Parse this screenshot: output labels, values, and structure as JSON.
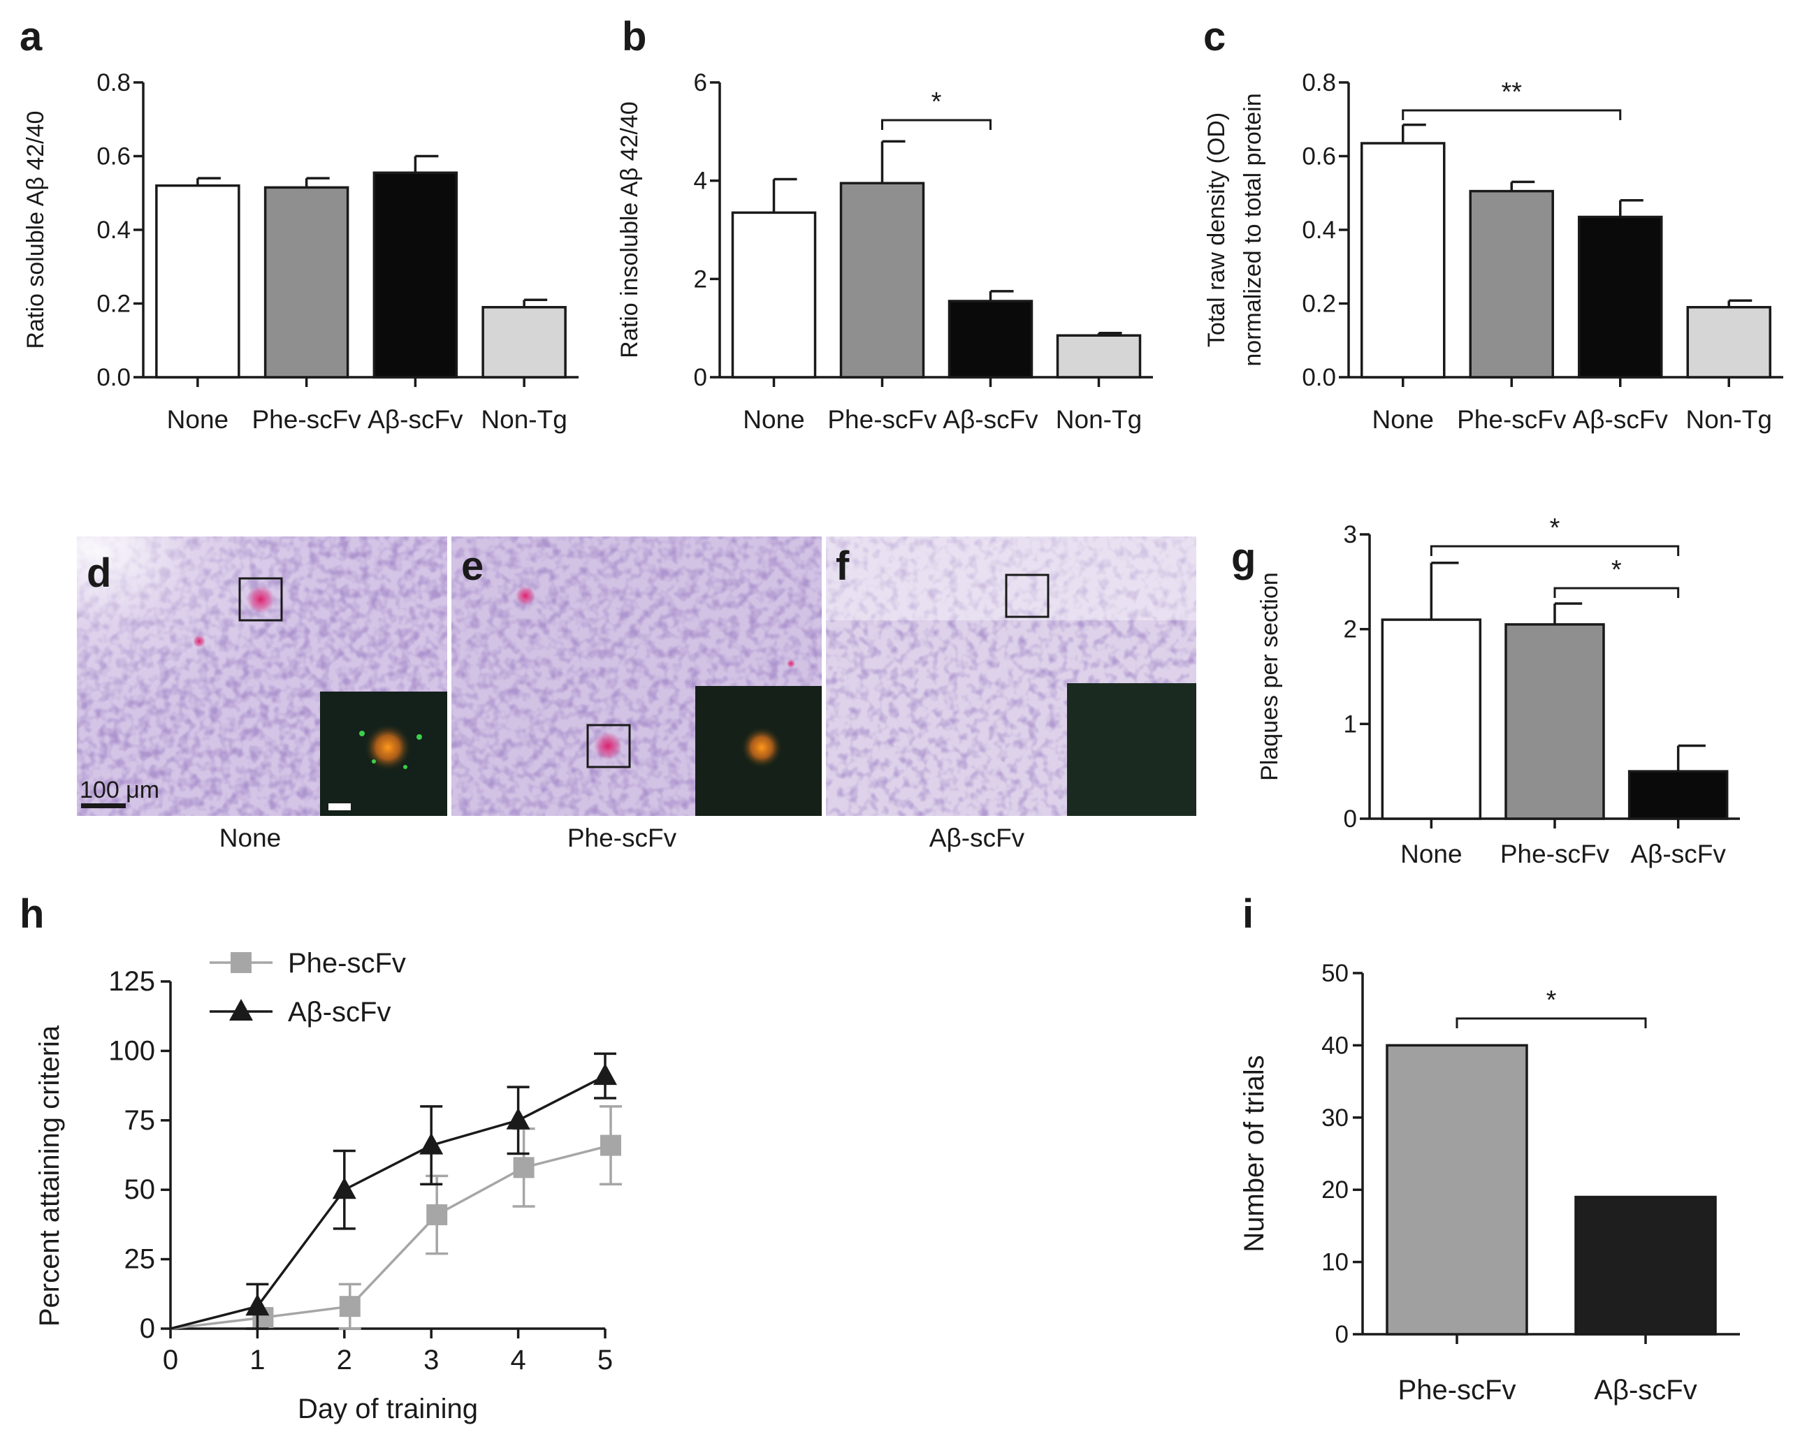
{
  "panel_labels": {
    "a": "a",
    "b": "b",
    "c": "c",
    "d": "d",
    "e": "e",
    "f": "f",
    "g": "g",
    "h": "h",
    "i": "i"
  },
  "colors": {
    "None": "#ffffff",
    "Phe-scFv": "#8f8f8f",
    "Aβ-scFv": "#0a0a0a",
    "Non-Tg": "#d6d6d6",
    "line_phe": "#a6a6a6",
    "line_ab": "#1a1a1a",
    "bar_i_phe": "#a0a0a0",
    "bar_i_ab": "#1e1e1e"
  },
  "chart_data": [
    {
      "id": "a",
      "type": "bar",
      "ylabel": "Ratio soluble Aβ 42/40",
      "categories": [
        "None",
        "Phe-scFv",
        "Aβ-scFv",
        "Non-Tg"
      ],
      "values": [
        0.52,
        0.515,
        0.555,
        0.19
      ],
      "errors": [
        0.02,
        0.025,
        0.045,
        0.02
      ],
      "ylim": [
        0,
        0.8
      ],
      "yticks": [
        "0.0",
        "0.2",
        "0.4",
        "0.6",
        "0.8"
      ],
      "significance": []
    },
    {
      "id": "b",
      "type": "bar",
      "ylabel": "Ratio insoluble Aβ 42/40",
      "categories": [
        "None",
        "Phe-scFv",
        "Aβ-scFv",
        "Non-Tg"
      ],
      "values": [
        3.35,
        3.95,
        1.55,
        0.85
      ],
      "errors": [
        0.68,
        0.85,
        0.2,
        0.05
      ],
      "ylim": [
        0,
        6
      ],
      "yticks": [
        "0",
        "2",
        "4",
        "6"
      ],
      "significance": [
        {
          "from": "Phe-scFv",
          "to": "Aβ-scFv",
          "label": "*"
        }
      ]
    },
    {
      "id": "c",
      "type": "bar",
      "ylabel": [
        "Total raw density (OD)",
        "normalized to total protein"
      ],
      "categories": [
        "None",
        "Phe-scFv",
        "Aβ-scFv",
        "Non-Tg"
      ],
      "values": [
        0.635,
        0.505,
        0.435,
        0.19
      ],
      "errors": [
        0.05,
        0.025,
        0.045,
        0.018
      ],
      "ylim": [
        0,
        0.8
      ],
      "yticks": [
        "0.0",
        "0.2",
        "0.4",
        "0.6",
        "0.8"
      ],
      "significance": [
        {
          "from": "None",
          "to": "Aβ-scFv",
          "label": "**"
        }
      ]
    },
    {
      "id": "g",
      "type": "bar",
      "ylabel": "Plaques per section",
      "categories": [
        "None",
        "Phe-scFv",
        "Aβ-scFv"
      ],
      "values": [
        2.1,
        2.05,
        0.5
      ],
      "errors": [
        0.6,
        0.22,
        0.27
      ],
      "ylim": [
        0,
        3
      ],
      "yticks": [
        "0",
        "1",
        "2",
        "3"
      ],
      "significance": [
        {
          "from": "None",
          "to": "Aβ-scFv",
          "label": "*"
        },
        {
          "from": "Phe-scFv",
          "to": "Aβ-scFv",
          "label": "*"
        }
      ]
    },
    {
      "id": "h",
      "type": "line",
      "xlabel": "Day of training",
      "ylabel": "Percent attaining criteria",
      "x": [
        0,
        1,
        2,
        3,
        4,
        5
      ],
      "xticks": [
        "0",
        "1",
        "2",
        "3",
        "4",
        "5"
      ],
      "ylim": [
        0,
        125
      ],
      "yticks": [
        "0",
        "25",
        "50",
        "75",
        "100",
        "125"
      ],
      "series": [
        {
          "name": "Phe-scFv",
          "values": [
            0,
            4,
            8,
            41,
            58,
            66
          ],
          "errors": [
            0,
            0,
            8,
            14,
            14,
            14
          ]
        },
        {
          "name": "Aβ-scFv",
          "values": [
            0,
            8,
            50,
            66,
            75,
            91
          ],
          "errors": [
            0,
            8,
            14,
            14,
            12,
            8
          ]
        }
      ],
      "legend": "top-left"
    },
    {
      "id": "i",
      "type": "bar",
      "ylabel": "Number of trials",
      "categories": [
        "Phe-scFv",
        "Aβ-scFv"
      ],
      "values": [
        40,
        19
      ],
      "ylim": [
        0,
        50
      ],
      "yticks": [
        "0",
        "10",
        "20",
        "30",
        "40",
        "50"
      ],
      "significance": [
        {
          "from": "Phe-scFv",
          "to": "Aβ-scFv",
          "label": "*"
        }
      ]
    }
  ],
  "histology": {
    "captions": [
      "None",
      "Phe-scFv",
      "Aβ-scFv"
    ],
    "scale_bar": "100 μm"
  }
}
